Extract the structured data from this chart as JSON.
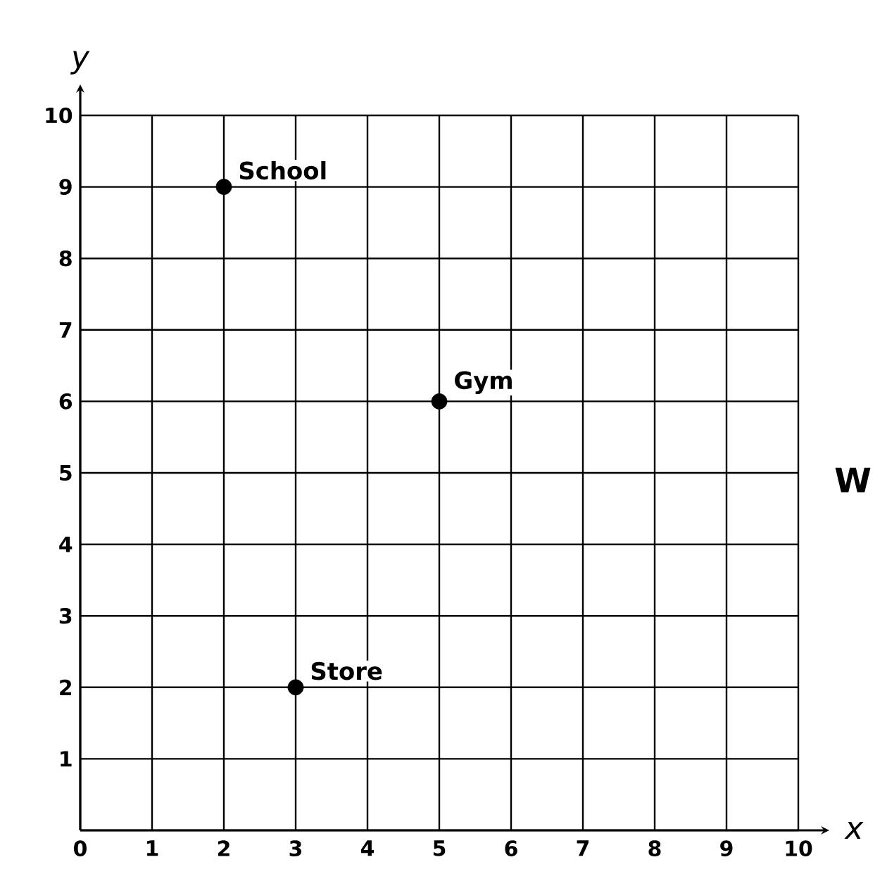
{
  "chart_data": {
    "type": "scatter",
    "xlabel": "x",
    "ylabel": "y",
    "x": [
      2,
      5,
      3
    ],
    "values": [
      9,
      6,
      2
    ],
    "color": "#000000",
    "marker": "circle",
    "xlim": [
      0,
      10
    ],
    "ylim": [
      0,
      10
    ],
    "xticks": [
      0,
      1,
      2,
      3,
      4,
      5,
      6,
      7,
      8,
      9,
      10
    ],
    "yticks": [
      {
        "value": 0,
        "label": null
      },
      1,
      2,
      3,
      4,
      5,
      6,
      7,
      8,
      9,
      10
    ],
    "grid": true,
    "annotations": [
      {
        "text": "School",
        "x": 2,
        "y": 9
      },
      {
        "text": "Gym",
        "x": 5,
        "y": 6
      },
      {
        "text": "Store",
        "x": 3,
        "y": 2
      },
      "W"
    ]
  }
}
